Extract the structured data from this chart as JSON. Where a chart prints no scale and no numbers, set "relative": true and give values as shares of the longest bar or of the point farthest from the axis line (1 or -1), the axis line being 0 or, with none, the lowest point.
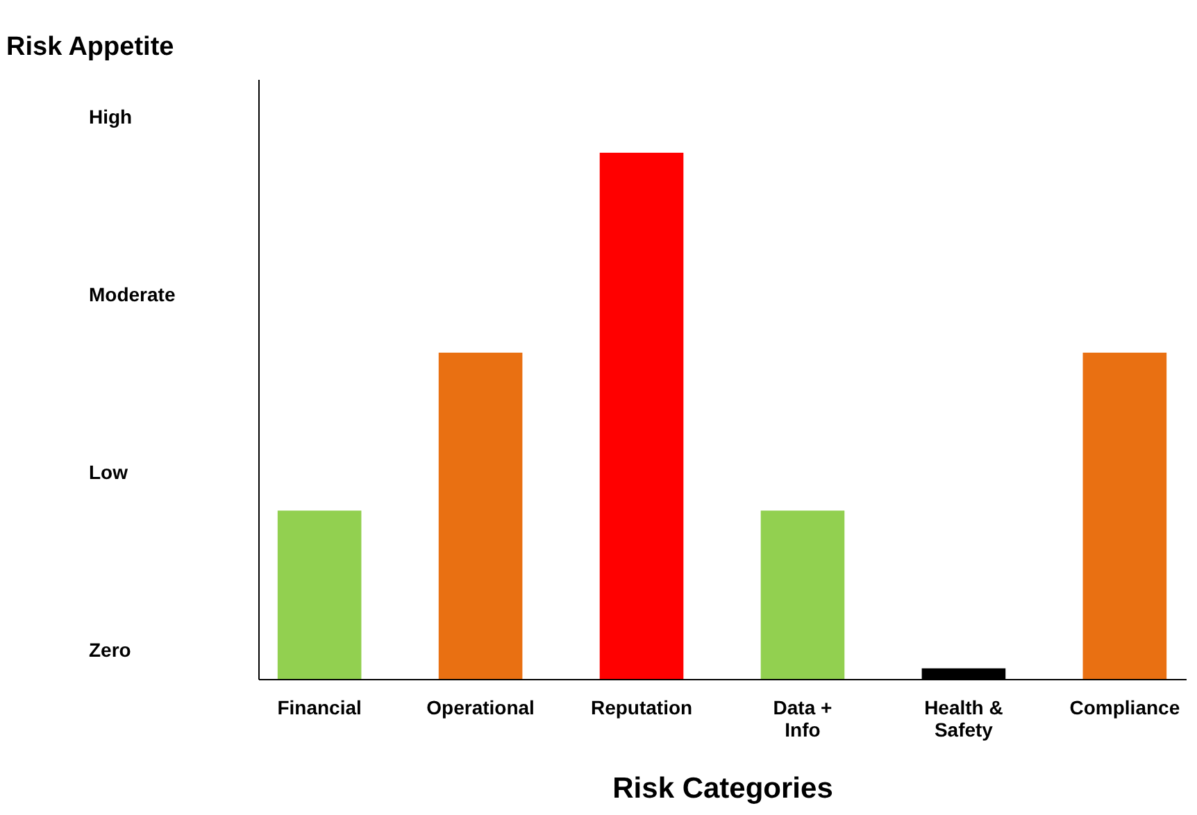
{
  "chart_data": {
    "type": "bar",
    "relative": true,
    "ylabel": "Risk Appetite",
    "xlabel": "Risk Categories",
    "categories": [
      "Financial",
      "Operational",
      "Reputation",
      "Data +\nInfo",
      "Health &\nSafety",
      "Compliance"
    ],
    "values": [
      0.32,
      0.62,
      1,
      0.32,
      0.02,
      0.62
    ],
    "colors": [
      "#92d050",
      "#e97012",
      "#ff0000",
      "#92d050",
      "#000000",
      "#e97012"
    ],
    "annotations": [
      "Zero",
      "Low",
      "Moderate",
      "High"
    ],
    "grid": false
  }
}
